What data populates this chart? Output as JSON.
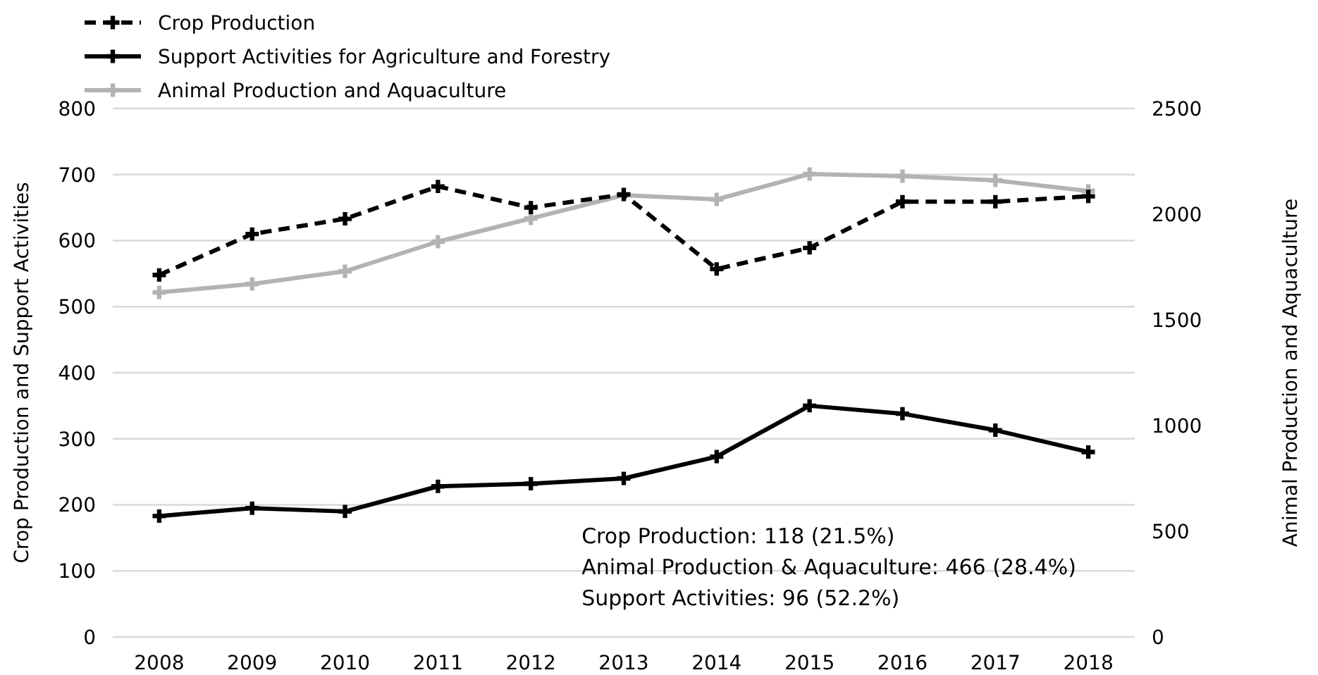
{
  "chart_data": {
    "type": "line",
    "categories": [
      "2008",
      "2009",
      "2010",
      "2011",
      "2012",
      "2013",
      "2014",
      "2015",
      "2016",
      "2017",
      "2018"
    ],
    "series": [
      {
        "name": "Crop Production",
        "color": "#000000",
        "line_style": "dashed",
        "values": [
          548,
          610,
          633,
          682,
          650,
          670,
          557,
          589,
          659,
          659,
          667
        ]
      },
      {
        "name": "Support Activities for Agriculture and Forestry",
        "color": "#000000",
        "line_style": "solid",
        "values": [
          183,
          195,
          190,
          228,
          232,
          240,
          273,
          350,
          338,
          313,
          280
        ]
      },
      {
        "name": "Animal Production and Aquaculture",
        "color": "#b3b3b3",
        "line_style": "solid",
        "axis": "y2",
        "values": [
          1630,
          1670,
          1730,
          1870,
          1980,
          2090,
          2070,
          2190,
          2180,
          2160,
          2110
        ]
      }
    ],
    "ylabel": "Crop Production and Support Activities",
    "y2label": "Animal Production and Aquaculture",
    "ylim": [
      0,
      800
    ],
    "yticks": [
      0,
      100,
      200,
      300,
      400,
      500,
      600,
      700,
      800
    ],
    "y2lim": [
      0,
      2500
    ],
    "y2ticks": [
      0,
      500,
      1000,
      1500,
      2000,
      2500
    ],
    "grid": "y",
    "legend": "top left",
    "marker": "cross",
    "annotations": [
      "Crop Production: 118 (21.5%)",
      "Animal Production & Aquaculture: 466 (28.4%)",
      "Support Activities: 96 (52.2%)"
    ]
  }
}
